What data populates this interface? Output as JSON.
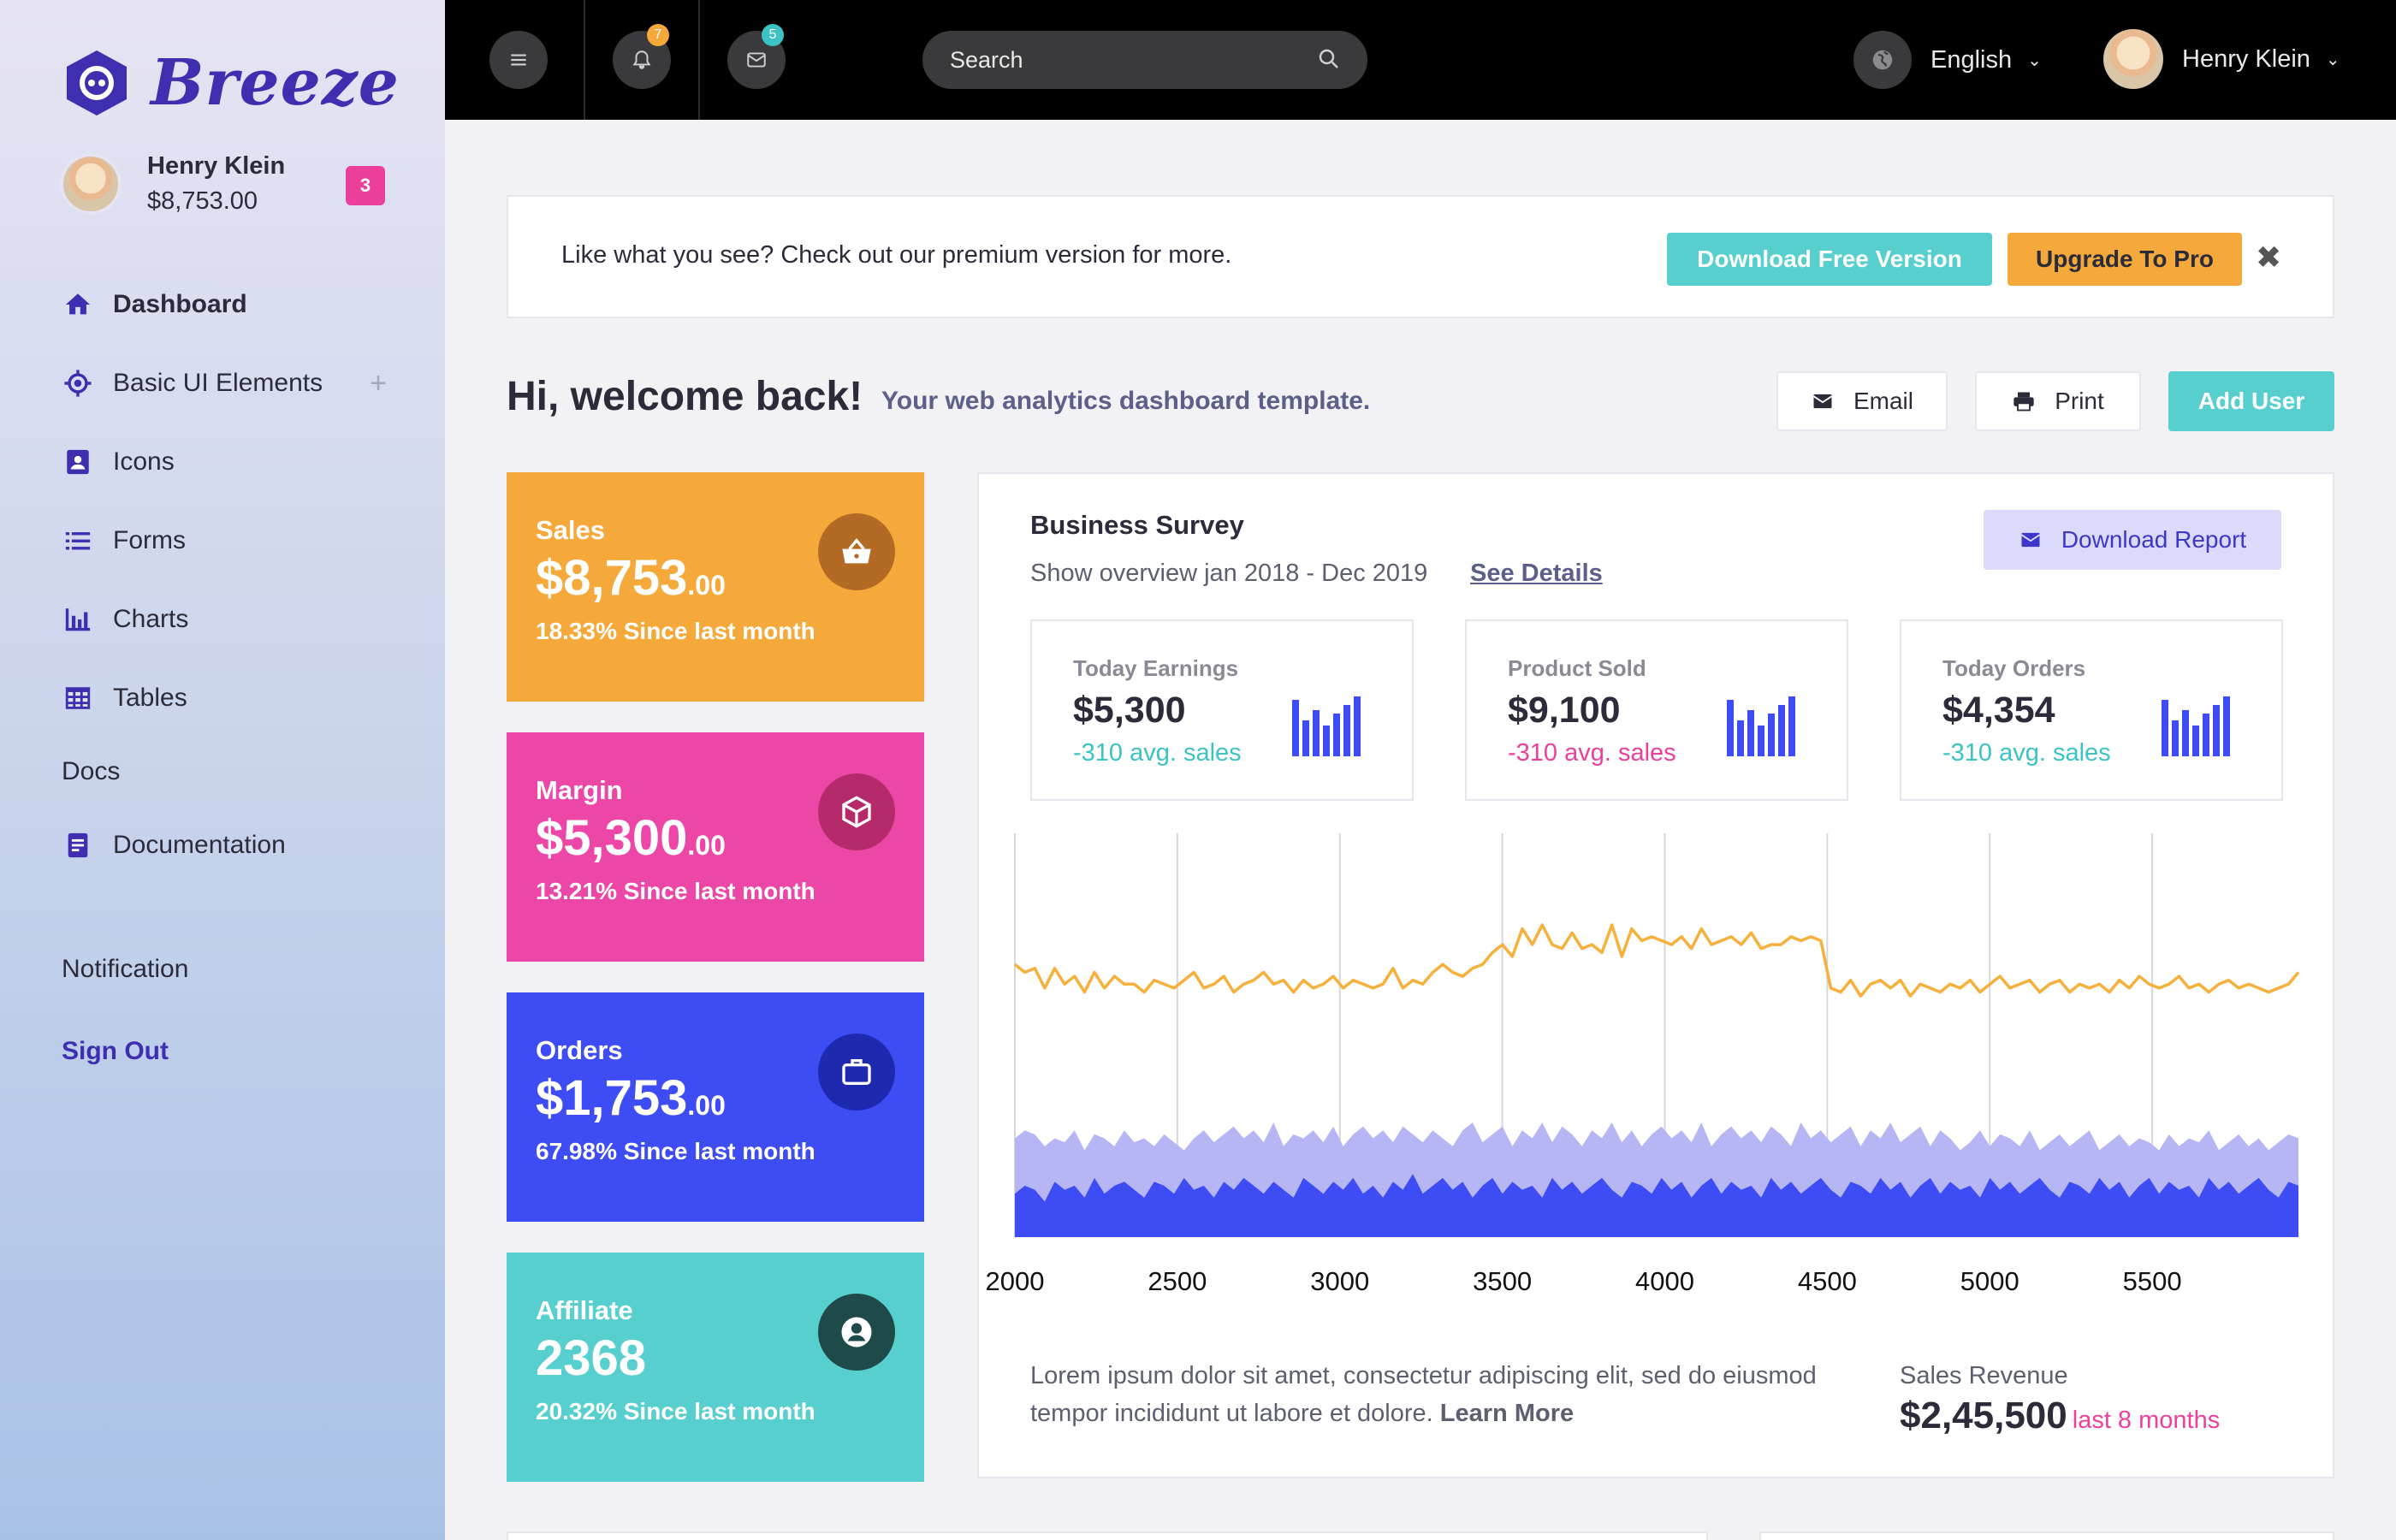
{
  "brand": {
    "name": "Breeze"
  },
  "profile": {
    "name": "Henry Klein",
    "balance": "$8,753.00",
    "badge": "3"
  },
  "nav": {
    "items": [
      {
        "label": "Dashboard"
      },
      {
        "label": "Basic UI Elements",
        "expand": "+"
      },
      {
        "label": "Icons"
      },
      {
        "label": "Forms"
      },
      {
        "label": "Charts"
      },
      {
        "label": "Tables"
      }
    ],
    "section": "Docs",
    "docs_item": "Documentation",
    "notification": "Notification",
    "signout": "Sign Out"
  },
  "topbar": {
    "notif_count": "7",
    "mail_count": "5",
    "search_placeholder": "Search",
    "language": "English",
    "user": "Henry Klein"
  },
  "banner": {
    "text": "Like what you see? Check out our premium version for more.",
    "download_label": "Download Free Version",
    "upgrade_label": "Upgrade To Pro",
    "close": "✖"
  },
  "welcome": {
    "title": "Hi, welcome back!",
    "subtitle": "Your web analytics dashboard template.",
    "email_label": "Email",
    "print_label": "Print",
    "add_user_label": "Add User"
  },
  "stats": [
    {
      "title": "Sales",
      "value": "$8,753",
      "cents": ".00",
      "sub": "18.33% Since last month",
      "color": "#f6a93b",
      "icon_bg": "#b36a25"
    },
    {
      "title": "Margin",
      "value": "$5,300",
      "cents": ".00",
      "sub": "13.21% Since last month",
      "color": "#ec47a6",
      "icon_bg": "#b52a6a"
    },
    {
      "title": "Orders",
      "value": "$1,753",
      "cents": ".00",
      "sub": "67.98% Since last month",
      "color": "#3d4cf3",
      "icon_bg": "#1d2ab0"
    },
    {
      "title": "Affiliate",
      "value": "2368",
      "cents": "",
      "sub": "20.32% Since last month",
      "color": "#58cfcf",
      "icon_bg": "#1f4a4a"
    }
  ],
  "survey": {
    "title": "Business Survey",
    "subtitle": "Show overview jan 2018 - Dec 2019",
    "link": "See Details",
    "download_label": "Download Report",
    "minis": [
      {
        "label": "Today Earnings",
        "value": "$5,300",
        "sub": "-310 avg. sales",
        "sub_color": "#3cc3c3"
      },
      {
        "label": "Product Sold",
        "value": "$9,100",
        "sub": "-310 avg. sales",
        "sub_color": "#ec3f9c"
      },
      {
        "label": "Today Orders",
        "value": "$4,354",
        "sub": "-310 avg. sales",
        "sub_color": "#3cc3c3"
      }
    ],
    "footer_text": "Lorem ipsum dolor sit amet, consectetur adipiscing elit, sed do eiusmod tempor incididunt ut labore et dolore.",
    "learn_more": "Learn More",
    "revenue_label": "Sales Revenue",
    "revenue_value": "$2,45,500",
    "revenue_period": "last 8 months"
  },
  "chart_data": {
    "type": "line",
    "x_ticks": [
      2000,
      2500,
      3000,
      3500,
      4000,
      4500,
      5000,
      5500
    ],
    "xlim": [
      2000,
      5950
    ],
    "ylim": [
      0,
      100
    ],
    "grid": "vertical",
    "colors": {
      "line": "#f6b03b",
      "area_light": "#b7b6f5",
      "area_dark": "#3d4cf3"
    },
    "series": [
      {
        "type": "line",
        "values": [
          69,
          67,
          68,
          63,
          68,
          64,
          66,
          62,
          67,
          63,
          66,
          64,
          64,
          62,
          65,
          64,
          63,
          65,
          67,
          63,
          64,
          66,
          62,
          64,
          65,
          67,
          64,
          65,
          62,
          65,
          63,
          64,
          66,
          63,
          65,
          64,
          63,
          64,
          68,
          63,
          65,
          64,
          67,
          69,
          67,
          66,
          68,
          69,
          72,
          74,
          71,
          78,
          74,
          79,
          74,
          73,
          77,
          73,
          74,
          72,
          79,
          71,
          78,
          75,
          76,
          75,
          74,
          76,
          73,
          78,
          74,
          75,
          76,
          74,
          77,
          73,
          74,
          74,
          76,
          75,
          76,
          75,
          63,
          62,
          65,
          61,
          64,
          65,
          63,
          65,
          61,
          64,
          63,
          62,
          64,
          63,
          65,
          62,
          64,
          66,
          63,
          64,
          65,
          62,
          64,
          65,
          62,
          64,
          63,
          64,
          62,
          65,
          63,
          66,
          64,
          63,
          64,
          66,
          63,
          64,
          62,
          64,
          65,
          63,
          64,
          63,
          62,
          63,
          64,
          67
        ]
      },
      {
        "type": "area",
        "values": [
          25,
          27,
          26,
          23,
          25,
          24,
          27,
          22,
          26,
          25,
          23,
          27,
          24,
          25,
          23,
          26,
          24,
          22,
          25,
          27,
          24,
          26,
          28,
          25,
          27,
          24,
          29,
          23,
          26,
          25,
          27,
          24,
          28,
          23,
          26,
          28,
          25,
          27,
          24,
          28,
          26,
          24,
          27,
          25,
          23,
          27,
          29,
          24,
          26,
          28,
          23,
          27,
          25,
          29,
          24,
          28,
          26,
          23,
          27,
          25,
          29,
          24,
          27,
          23,
          26,
          28,
          25,
          27,
          24,
          29,
          23,
          26,
          28,
          25,
          27,
          24,
          28,
          26,
          23,
          29,
          25,
          27,
          24,
          26,
          28,
          23,
          27,
          25,
          29,
          24,
          26,
          28,
          23,
          27,
          25,
          22,
          24,
          27,
          23,
          26,
          25,
          23,
          27,
          22,
          24,
          26,
          23,
          25,
          27,
          22,
          24,
          26,
          23,
          25,
          24,
          22,
          26,
          23,
          25,
          24,
          27,
          22,
          24,
          26,
          23,
          25,
          22,
          24,
          26,
          25
        ]
      },
      {
        "type": "area",
        "values": [
          11,
          13,
          12,
          9,
          14,
          12,
          13,
          10,
          15,
          11,
          13,
          14,
          12,
          10,
          14,
          13,
          11,
          15,
          12,
          13,
          10,
          14,
          12,
          15,
          13,
          11,
          14,
          12,
          10,
          15,
          13,
          11,
          14,
          12,
          15,
          11,
          13,
          10,
          14,
          12,
          16,
          11,
          13,
          15,
          12,
          14,
          10,
          13,
          15,
          11,
          14,
          12,
          13,
          10,
          15,
          12,
          14,
          11,
          13,
          15,
          12,
          10,
          14,
          13,
          11,
          15,
          12,
          14,
          10,
          13,
          15,
          11,
          14,
          12,
          13,
          10,
          15,
          12,
          14,
          11,
          13,
          15,
          12,
          10,
          14,
          13,
          11,
          15,
          12,
          14,
          10,
          13,
          15,
          11,
          14,
          12,
          13,
          10,
          15,
          12,
          14,
          11,
          13,
          15,
          12,
          10,
          14,
          13,
          11,
          15,
          12,
          14,
          10,
          13,
          15,
          11,
          14,
          12,
          13,
          10,
          15,
          12,
          14,
          11,
          13,
          15,
          12,
          10,
          14,
          13
        ]
      }
    ]
  }
}
